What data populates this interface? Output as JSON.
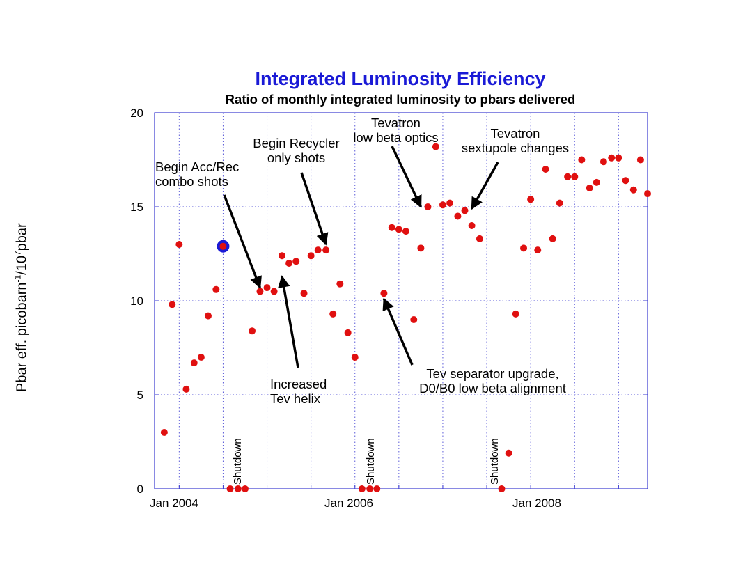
{
  "chart_data": {
    "type": "scatter",
    "title": "Integrated Luminosity Efficiency",
    "subtitle": "Ratio of monthly integrated luminosity to pbars delivered",
    "ylabel_pre": "Pbar eff. picobarn",
    "ylabel_sup1": "-1",
    "ylabel_mid": "/10",
    "ylabel_sup2": "7",
    "ylabel_post": "pbar",
    "xlabel": "",
    "ylim": [
      0,
      20
    ],
    "xlim_years": [
      2003.72,
      2009.33
    ],
    "y_ticks": [
      "0",
      "5",
      "10",
      "15",
      "20"
    ],
    "x_ticks": [
      {
        "label": "Jan 2004",
        "x": 2004.0
      },
      {
        "label": "Jan 2006",
        "x": 2006.0
      },
      {
        "label": "Jan 2008",
        "x": 2008.0
      }
    ],
    "point_color": "#e01010",
    "highlight_color": "#1a1ad6",
    "points": [
      {
        "x": 2003.83,
        "y": 3.0
      },
      {
        "x": 2003.92,
        "y": 9.8
      },
      {
        "x": 2004.0,
        "y": 13.0
      },
      {
        "x": 2004.08,
        "y": 5.3
      },
      {
        "x": 2004.17,
        "y": 6.7
      },
      {
        "x": 2004.25,
        "y": 7.0
      },
      {
        "x": 2004.33,
        "y": 9.2
      },
      {
        "x": 2004.42,
        "y": 10.6
      },
      {
        "x": 2004.5,
        "y": 12.9,
        "highlight": true
      },
      {
        "x": 2004.58,
        "y": 0.0
      },
      {
        "x": 2004.67,
        "y": 0.0
      },
      {
        "x": 2004.75,
        "y": 0.0
      },
      {
        "x": 2004.83,
        "y": 8.4
      },
      {
        "x": 2004.92,
        "y": 10.5
      },
      {
        "x": 2005.0,
        "y": 10.7
      },
      {
        "x": 2005.08,
        "y": 10.5
      },
      {
        "x": 2005.17,
        "y": 12.4
      },
      {
        "x": 2005.25,
        "y": 12.0
      },
      {
        "x": 2005.33,
        "y": 12.1
      },
      {
        "x": 2005.42,
        "y": 10.4
      },
      {
        "x": 2005.5,
        "y": 12.4
      },
      {
        "x": 2005.58,
        "y": 12.7
      },
      {
        "x": 2005.67,
        "y": 12.7
      },
      {
        "x": 2005.75,
        "y": 9.3
      },
      {
        "x": 2005.83,
        "y": 10.9
      },
      {
        "x": 2005.92,
        "y": 8.3
      },
      {
        "x": 2006.0,
        "y": 7.0
      },
      {
        "x": 2006.08,
        "y": 0.0
      },
      {
        "x": 2006.17,
        "y": 0.0
      },
      {
        "x": 2006.25,
        "y": 0.0
      },
      {
        "x": 2006.33,
        "y": 10.4
      },
      {
        "x": 2006.42,
        "y": 13.9
      },
      {
        "x": 2006.5,
        "y": 13.8
      },
      {
        "x": 2006.58,
        "y": 13.7
      },
      {
        "x": 2006.67,
        "y": 9.0
      },
      {
        "x": 2006.75,
        "y": 12.8
      },
      {
        "x": 2006.83,
        "y": 15.0
      },
      {
        "x": 2006.92,
        "y": 18.2
      },
      {
        "x": 2007.0,
        "y": 15.1
      },
      {
        "x": 2007.08,
        "y": 15.2
      },
      {
        "x": 2007.17,
        "y": 14.5
      },
      {
        "x": 2007.25,
        "y": 14.8
      },
      {
        "x": 2007.33,
        "y": 14.0
      },
      {
        "x": 2007.42,
        "y": 13.3
      },
      {
        "x": 2007.67,
        "y": 0.0
      },
      {
        "x": 2007.75,
        "y": 1.9
      },
      {
        "x": 2007.83,
        "y": 9.3
      },
      {
        "x": 2007.92,
        "y": 12.8
      },
      {
        "x": 2008.0,
        "y": 15.4
      },
      {
        "x": 2008.08,
        "y": 12.7
      },
      {
        "x": 2008.17,
        "y": 17.0
      },
      {
        "x": 2008.25,
        "y": 13.3
      },
      {
        "x": 2008.33,
        "y": 15.2
      },
      {
        "x": 2008.42,
        "y": 16.6
      },
      {
        "x": 2008.5,
        "y": 16.6
      },
      {
        "x": 2008.58,
        "y": 17.5
      },
      {
        "x": 2008.67,
        "y": 16.0
      },
      {
        "x": 2008.75,
        "y": 16.3
      },
      {
        "x": 2008.83,
        "y": 17.4
      },
      {
        "x": 2008.92,
        "y": 17.6
      },
      {
        "x": 2009.0,
        "y": 17.6
      },
      {
        "x": 2009.08,
        "y": 16.4
      },
      {
        "x": 2009.17,
        "y": 15.9
      },
      {
        "x": 2009.25,
        "y": 17.5
      },
      {
        "x": 2009.33,
        "y": 15.7
      }
    ],
    "annotations": [
      {
        "line1": "Begin Acc/Rec",
        "line2": "combo shots",
        "target": {
          "x": 2004.92,
          "y": 10.7
        }
      },
      {
        "line1": "Begin Recycler",
        "line2": "only shots",
        "target": {
          "x": 2005.67,
          "y": 13.0
        }
      },
      {
        "line1": "Increased",
        "line2": "Tev helix",
        "target": {
          "x": 2005.17,
          "y": 11.3
        }
      },
      {
        "line1": "Tevatron",
        "line2": "low beta optics",
        "target": {
          "x": 2006.75,
          "y": 15.0
        }
      },
      {
        "line1": "Tevatron",
        "line2": "sextupole changes",
        "target": {
          "x": 2007.33,
          "y": 14.9
        }
      },
      {
        "line1": "Tev separator upgrade,",
        "line2": "D0/B0 low beta alignment",
        "target": {
          "x": 2006.33,
          "y": 10.1
        }
      }
    ],
    "shutdown_label": "Shutdown"
  }
}
